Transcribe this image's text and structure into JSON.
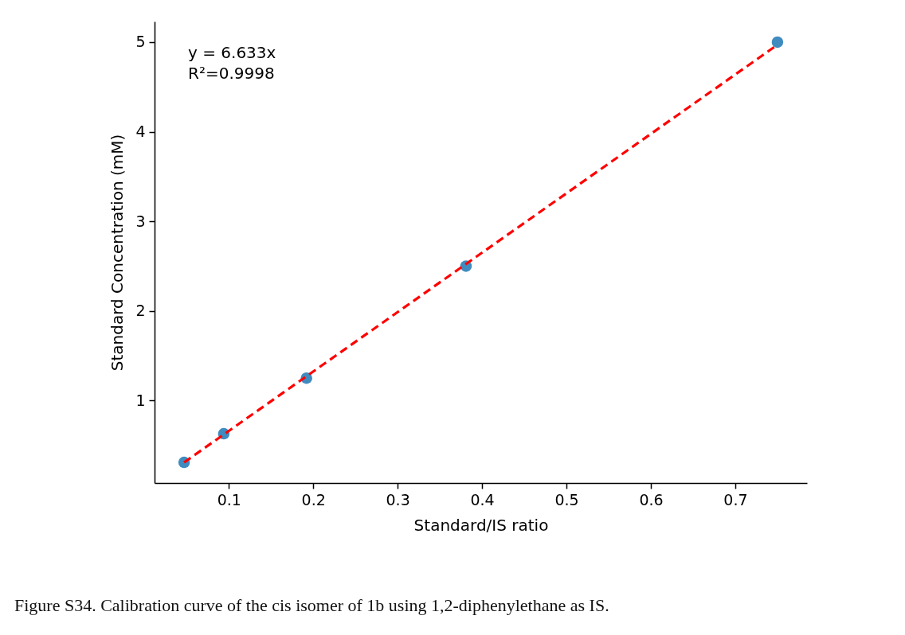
{
  "chart_data": {
    "type": "scatter",
    "xlabel": "Standard/IS ratio",
    "ylabel": "Standard Concentration (mM)",
    "xlim": [
      0.012,
      0.785
    ],
    "xticks": [
      0.1,
      0.2,
      0.3,
      0.4,
      0.5,
      0.6,
      0.7
    ],
    "ylim": [
      0.08,
      5.23
    ],
    "yticks": [
      1,
      2,
      3,
      4,
      5
    ],
    "series": [
      {
        "color": "#1f77b4",
        "marker": "circle",
        "x": [
          0.047,
          0.094,
          0.192,
          0.381,
          0.75
        ],
        "values": [
          0.31,
          0.63,
          1.25,
          2.5,
          5
        ]
      },
      {
        "type": "line",
        "color": "#ff0000",
        "line_style": "dashed",
        "x": [
          0.047,
          0.75
        ],
        "values": [
          0.31,
          4.97
        ]
      }
    ],
    "annotations": [
      "y = 6.633x",
      "R²=0.9998",
      "Figure S34. Calibration curve of the cis isomer of 1b using 1,2-diphenylethane as IS."
    ]
  }
}
